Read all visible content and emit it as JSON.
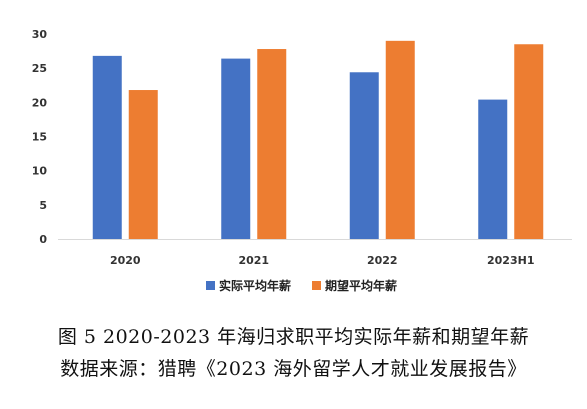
{
  "chart_data": {
    "type": "bar",
    "categories": [
      "2020",
      "2021",
      "2022",
      "2023H1"
    ],
    "series": [
      {
        "name": "实际平均年薪",
        "values": [
          26.8,
          26.4,
          24.4,
          20.4
        ],
        "color": "#4472C4"
      },
      {
        "name": "期望平均年薪",
        "values": [
          21.8,
          27.8,
          29.0,
          28.5
        ],
        "color": "#ED7D31"
      }
    ],
    "yticks": [
      0,
      5,
      10,
      15,
      20,
      25,
      30
    ],
    "ylim": [
      0,
      30
    ],
    "legend": "bottom"
  },
  "caption": {
    "line1": "图 5  2020-2023 年海归求职平均实际年薪和期望年薪",
    "line2": "数据来源：猎聘《2023 海外留学人才就业发展报告》"
  }
}
